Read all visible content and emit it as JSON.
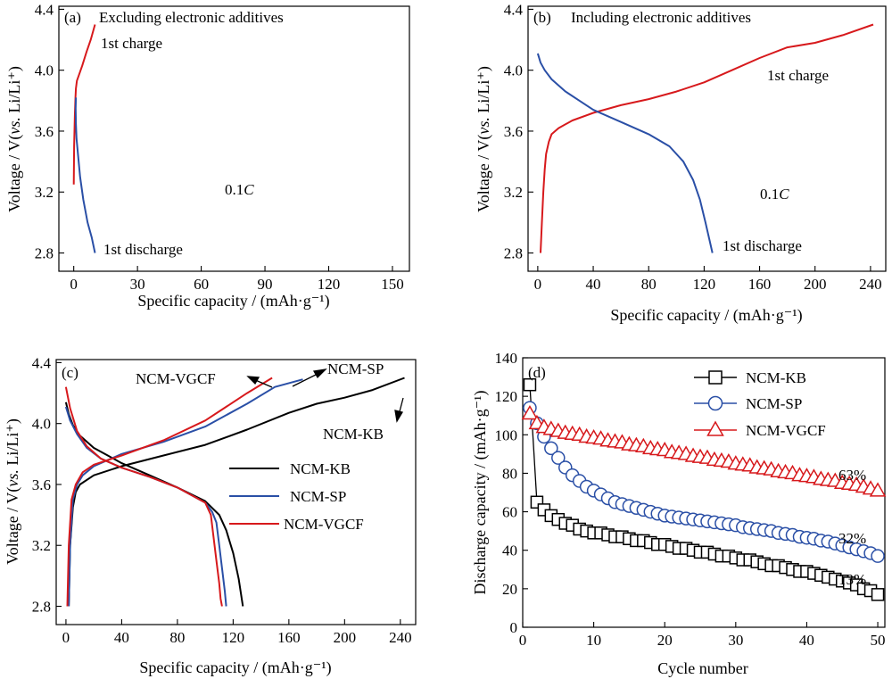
{
  "colors": {
    "red": "#d7191c",
    "blue": "#2a4fa6",
    "black": "#000000",
    "axis": "#000000"
  },
  "chart_data": [
    {
      "panel": "(a)",
      "type": "line",
      "title": "Excluding electronic additives",
      "xlabel": "Specific capacity / (mAh·g⁻¹)",
      "ylabel": "Voltage / V(vs. Li/Li⁺)",
      "xlim": [
        -7,
        158
      ],
      "ylim": [
        2.68,
        4.42
      ],
      "xticks": [
        "0",
        "30",
        "60",
        "90",
        "120",
        "150"
      ],
      "yticks": [
        "2.8",
        "3.2",
        "3.6",
        "4.0",
        "4.4"
      ],
      "grid": false,
      "annotations": [
        "1st charge",
        "1st discharge",
        "0.1C"
      ],
      "series": [
        {
          "name": "1st charge",
          "color": "red",
          "x": [
            0,
            0.2,
            0.5,
            0.8,
            1,
            1.5,
            2.5,
            4,
            6,
            8,
            10
          ],
          "y": [
            3.25,
            3.5,
            3.7,
            3.82,
            3.88,
            3.93,
            3.97,
            4.03,
            4.12,
            4.2,
            4.3
          ]
        },
        {
          "name": "1st discharge",
          "color": "blue",
          "x": [
            1,
            0.9,
            1,
            1.3,
            2,
            3,
            4.5,
            6.5,
            8.5,
            10
          ],
          "y": [
            3.82,
            3.75,
            3.65,
            3.55,
            3.45,
            3.3,
            3.15,
            3.0,
            2.9,
            2.8
          ]
        }
      ]
    },
    {
      "panel": "(b)",
      "type": "line",
      "title": "Including electronic additives",
      "xlabel": "Specific capacity / (mAh·g⁻¹)",
      "ylabel": "Voltage / V(vs. Li/Li⁺)",
      "xlim": [
        -7,
        251
      ],
      "ylim": [
        2.68,
        4.42
      ],
      "xticks": [
        "0",
        "40",
        "80",
        "120",
        "160",
        "200",
        "240"
      ],
      "yticks": [
        "2.8",
        "3.2",
        "3.6",
        "4.0",
        "4.4"
      ],
      "grid": false,
      "annotations": [
        "1st charge",
        "1st discharge",
        "0.1C"
      ],
      "series": [
        {
          "name": "1st charge",
          "color": "red",
          "x": [
            2,
            3,
            4,
            5,
            6,
            8,
            10,
            15,
            25,
            40,
            60,
            80,
            100,
            120,
            140,
            160,
            180,
            200,
            220,
            242
          ],
          "y": [
            2.8,
            3.0,
            3.2,
            3.35,
            3.45,
            3.53,
            3.58,
            3.62,
            3.67,
            3.72,
            3.77,
            3.81,
            3.86,
            3.92,
            4.0,
            4.08,
            4.15,
            4.18,
            4.23,
            4.3
          ]
        },
        {
          "name": "1st discharge",
          "color": "blue",
          "x": [
            0,
            2,
            5,
            10,
            20,
            30,
            40,
            60,
            80,
            95,
            105,
            112,
            117,
            121,
            124,
            126
          ],
          "y": [
            4.11,
            4.05,
            4.0,
            3.94,
            3.86,
            3.8,
            3.74,
            3.66,
            3.58,
            3.5,
            3.4,
            3.28,
            3.15,
            3.0,
            2.88,
            2.8
          ]
        }
      ]
    },
    {
      "panel": "(c)",
      "type": "line",
      "xlabel": "Specific capacity / (mAh·g⁻¹)",
      "ylabel": "Voltage / V(vs. Li/Li⁺)",
      "xlim": [
        -7,
        251
      ],
      "ylim": [
        2.68,
        4.42
      ],
      "xticks": [
        "0",
        "40",
        "80",
        "120",
        "160",
        "200",
        "240"
      ],
      "yticks": [
        "2.8",
        "3.2",
        "3.6",
        "4.0",
        "4.4"
      ],
      "grid": false,
      "legend_position": "center-right",
      "annotations": [
        "NCM-VGCF",
        "NCM-SP",
        "NCM-KB"
      ],
      "series": [
        {
          "name": "NCM-KB",
          "color": "black",
          "x": [
            2,
            3,
            5,
            7,
            10,
            20,
            40,
            70,
            100,
            130,
            160,
            180,
            200,
            220,
            243
          ],
          "y": [
            2.8,
            3.2,
            3.45,
            3.55,
            3.6,
            3.66,
            3.72,
            3.79,
            3.86,
            3.96,
            4.07,
            4.13,
            4.17,
            4.22,
            4.3
          ]
        },
        {
          "name": "NCM-KB",
          "color": "black",
          "x": [
            0,
            2,
            5,
            10,
            20,
            30,
            40,
            60,
            80,
            100,
            110,
            115,
            120,
            124,
            127
          ],
          "y": [
            4.14,
            4.06,
            3.99,
            3.92,
            3.84,
            3.79,
            3.74,
            3.66,
            3.58,
            3.49,
            3.4,
            3.3,
            3.15,
            2.98,
            2.8
          ]
        },
        {
          "name": "NCM-SP",
          "color": "blue",
          "x": [
            2,
            3,
            5,
            8,
            12,
            20,
            40,
            70,
            100,
            130,
            150,
            170
          ],
          "y": [
            2.8,
            3.2,
            3.5,
            3.6,
            3.66,
            3.72,
            3.8,
            3.88,
            3.98,
            4.13,
            4.24,
            4.29
          ]
        },
        {
          "name": "NCM-SP",
          "color": "blue",
          "x": [
            0,
            3,
            8,
            15,
            25,
            40,
            60,
            80,
            100,
            105,
            108,
            110,
            112,
            114,
            115
          ],
          "y": [
            4.11,
            4.02,
            3.93,
            3.84,
            3.77,
            3.71,
            3.65,
            3.58,
            3.48,
            3.42,
            3.35,
            3.2,
            3.05,
            2.9,
            2.8
          ]
        },
        {
          "name": "NCM-VGCF",
          "color": "red",
          "x": [
            1,
            2,
            4,
            7,
            12,
            20,
            40,
            70,
            100,
            130,
            148
          ],
          "y": [
            2.8,
            3.2,
            3.5,
            3.6,
            3.68,
            3.73,
            3.79,
            3.89,
            4.02,
            4.2,
            4.3
          ]
        },
        {
          "name": "NCM-VGCF",
          "color": "red",
          "x": [
            0,
            3,
            8,
            15,
            25,
            40,
            60,
            80,
            100,
            104,
            106,
            108,
            110,
            111,
            112
          ],
          "y": [
            4.24,
            4.1,
            3.95,
            3.85,
            3.77,
            3.71,
            3.65,
            3.58,
            3.48,
            3.4,
            3.25,
            3.1,
            2.95,
            2.85,
            2.8
          ]
        }
      ]
    },
    {
      "panel": "(d)",
      "type": "scatter",
      "xlabel": "Cycle number",
      "ylabel": "Discharge capacity / (mAh·g⁻¹)",
      "xlim": [
        0,
        51
      ],
      "ylim": [
        0,
        140
      ],
      "xticks": [
        "0",
        "10",
        "20",
        "30",
        "40",
        "50"
      ],
      "yticks": [
        "0",
        "20",
        "40",
        "60",
        "80",
        "100",
        "120",
        "140"
      ],
      "grid": false,
      "legend_position": "top-right",
      "annotations": [
        "63%",
        "32%",
        "13%"
      ],
      "series": [
        {
          "name": "NCM-KB",
          "color": "black",
          "marker": "square",
          "x": [
            1,
            2,
            3,
            4,
            5,
            6,
            7,
            8,
            9,
            10,
            11,
            12,
            13,
            14,
            15,
            16,
            17,
            18,
            19,
            20,
            21,
            22,
            23,
            24,
            25,
            26,
            27,
            28,
            29,
            30,
            31,
            32,
            33,
            34,
            35,
            36,
            37,
            38,
            39,
            40,
            41,
            42,
            43,
            44,
            45,
            46,
            47,
            48,
            49,
            50
          ],
          "y": [
            126,
            65,
            61,
            58,
            56,
            54,
            53,
            51,
            50,
            49,
            49,
            48,
            47,
            47,
            46,
            45,
            45,
            44,
            43,
            43,
            42,
            41,
            41,
            40,
            39,
            39,
            38,
            37,
            37,
            36,
            35,
            35,
            34,
            33,
            32,
            32,
            31,
            30,
            29,
            29,
            28,
            27,
            26,
            25,
            24,
            23,
            22,
            20,
            19,
            17
          ]
        },
        {
          "name": "NCM-SP",
          "color": "blue",
          "marker": "circle",
          "x": [
            1,
            2,
            3,
            4,
            5,
            6,
            7,
            8,
            9,
            10,
            11,
            12,
            13,
            14,
            15,
            16,
            17,
            18,
            19,
            20,
            21,
            22,
            23,
            24,
            25,
            26,
            27,
            28,
            29,
            30,
            31,
            32,
            33,
            34,
            35,
            36,
            37,
            38,
            39,
            40,
            41,
            42,
            43,
            44,
            45,
            46,
            47,
            48,
            49,
            50
          ],
          "y": [
            114,
            106,
            99,
            93,
            88,
            83,
            79,
            76,
            73,
            71,
            69,
            67,
            65,
            64,
            63,
            62,
            61,
            60,
            59,
            58,
            57.5,
            57,
            56.5,
            56,
            55.5,
            55,
            54.5,
            54,
            53.5,
            53,
            52,
            51.5,
            51,
            50.5,
            50,
            49,
            48.5,
            48,
            47,
            46.5,
            46,
            45,
            44.5,
            43.5,
            42.5,
            41.5,
            40.5,
            39.5,
            38.5,
            37
          ]
        },
        {
          "name": "NCM-VGCF",
          "color": "red",
          "marker": "triangle",
          "x": [
            1,
            2,
            3,
            4,
            5,
            6,
            7,
            8,
            9,
            10,
            11,
            12,
            13,
            14,
            15,
            16,
            17,
            18,
            19,
            20,
            21,
            22,
            23,
            24,
            25,
            26,
            27,
            28,
            29,
            30,
            31,
            32,
            33,
            34,
            35,
            36,
            37,
            38,
            39,
            40,
            41,
            42,
            43,
            44,
            45,
            46,
            47,
            48,
            49,
            50
          ],
          "y": [
            111,
            106,
            104,
            103,
            102,
            101,
            100.5,
            100,
            99,
            98.5,
            98,
            97,
            96.5,
            96,
            95,
            94.5,
            94,
            93,
            92.5,
            92,
            91,
            90.5,
            90,
            89,
            88.5,
            88,
            87,
            86.5,
            86,
            85,
            84.5,
            84,
            83,
            82.5,
            82,
            81,
            80.5,
            80,
            79,
            78.5,
            78,
            77,
            76.5,
            76,
            75,
            74.5,
            74,
            73,
            72,
            71
          ]
        }
      ]
    }
  ],
  "panels": {
    "a": {
      "label": "(a)",
      "title": "Excluding electronic additives",
      "charge": "1st charge",
      "discharge": "1st discharge",
      "rate": "0.1"
    },
    "b": {
      "label": "(b)",
      "title": "Including electronic additives",
      "charge": "1st charge",
      "discharge": "1st discharge",
      "rate": "0.1"
    },
    "c": {
      "label": "(c)",
      "ann_vgcf": "NCM-VGCF",
      "ann_sp": "NCM-SP",
      "ann_kb": "NCM-KB",
      "legend": [
        "NCM-KB",
        "NCM-SP",
        "NCM-VGCF"
      ]
    },
    "d": {
      "label": "(d)",
      "legend": [
        "NCM-KB",
        "NCM-SP",
        "NCM-VGCF"
      ],
      "pct_vgcf": "63%",
      "pct_sp": "32%",
      "pct_kb": "13%"
    }
  },
  "labels": {
    "x_capacity": "Specific capacity / (mAh·g⁻¹)",
    "x_cycle": "Cycle number",
    "y_voltage_pre": "Voltage / V(",
    "y_voltage_vs": "vs.",
    "y_voltage_post": " Li/Li⁺)",
    "y_discharge": "Discharge capacity / (mAh·g⁻¹)",
    "rate_unit": "C"
  }
}
